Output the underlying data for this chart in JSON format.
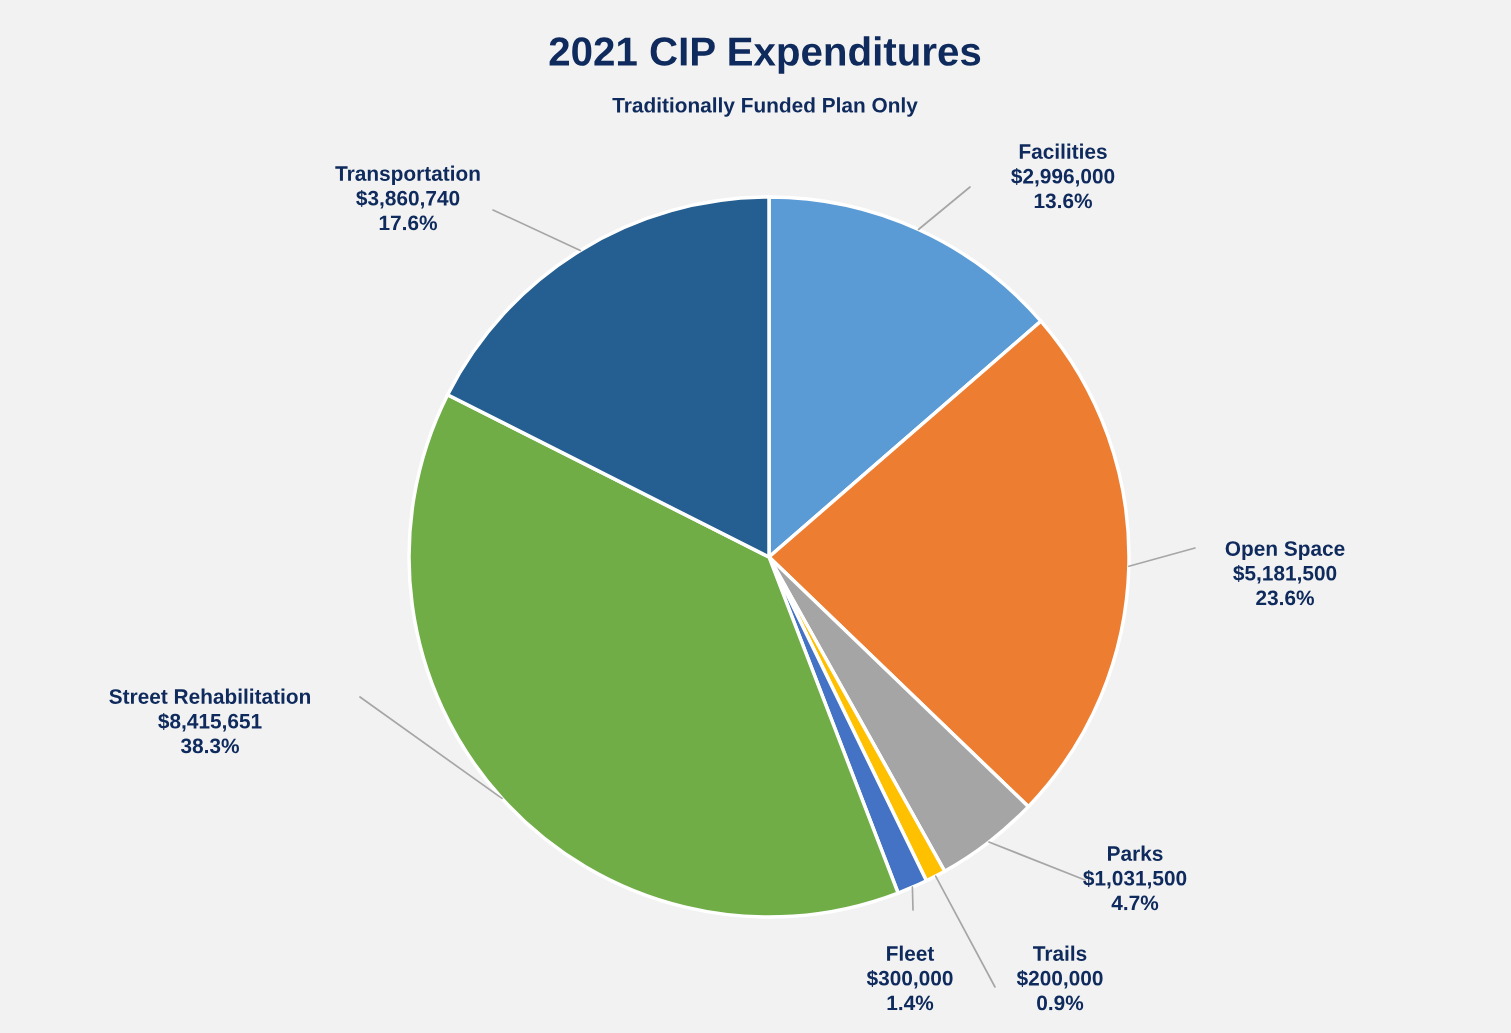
{
  "chart_data": {
    "type": "pie",
    "title": "2021 CIP Expenditures",
    "subtitle": "Traditionally Funded Plan Only",
    "categories": [
      "Facilities",
      "Open Space",
      "Parks",
      "Trails",
      "Fleet",
      "Street Rehabilitation",
      "Transportation"
    ],
    "values": [
      2996000,
      5181500,
      1031500,
      200000,
      300000,
      8415651,
      3860740
    ],
    "value_labels": [
      "$2,996,000\n13.6%",
      "$5,181,500\n23.6%",
      "$1,031,500\n4.7%",
      "$200,000\n0.9%",
      "$300,000\n1.4%",
      "$8,415,651\n38.3%",
      "$3,860,740\n17.6%"
    ],
    "colors": [
      "#5b9bd5",
      "#ed7d31",
      "#a5a5a5",
      "#ffc000",
      "#4472c4",
      "#70ad47",
      "#255e91"
    ]
  }
}
